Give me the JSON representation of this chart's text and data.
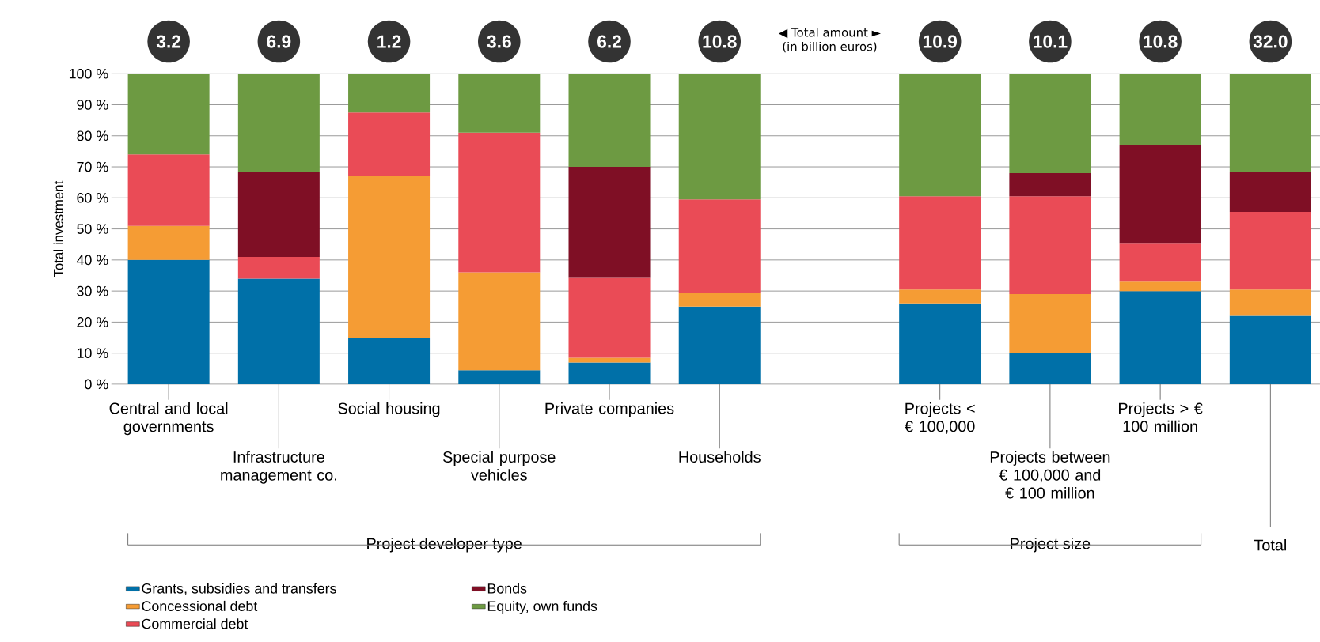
{
  "chart_data": {
    "type": "bar",
    "stacked": true,
    "ylabel": "Total investment",
    "categories": [
      "Central and local governments",
      "Infrastructure management co.",
      "Social housing",
      "Special purpose vehicles",
      "Private companies",
      "Households",
      null,
      "Projects < € 100,000",
      "Projects between € 100,000 and € 100 million",
      "Projects > € 100 million",
      null
    ],
    "series": [
      {
        "name": "Grants, subsidies and transfers",
        "color": "#0070a8",
        "values": [
          40,
          34,
          15,
          4.5,
          7,
          25,
          null,
          26,
          10,
          30,
          22
        ]
      },
      {
        "name": "Concessional debt",
        "color": "#f59c34",
        "values": [
          11,
          0,
          52,
          31.5,
          1.5,
          4.5,
          null,
          4.5,
          19,
          3,
          8.5
        ]
      },
      {
        "name": "Commercial debt",
        "color": "#ea4b56",
        "values": [
          23,
          7,
          20.5,
          45,
          26,
          30,
          null,
          30,
          31.5,
          12.5,
          25
        ]
      },
      {
        "name": "Bonds",
        "color": "#7f0f25",
        "values": [
          0,
          27.5,
          0,
          0,
          35.5,
          0,
          null,
          0,
          7.5,
          31.5,
          13
        ]
      },
      {
        "name": "Equity, own funds",
        "color": "#6d9a42",
        "values": [
          26,
          31.5,
          12.5,
          19,
          30,
          40.5,
          null,
          39.5,
          32,
          23,
          31.5
        ]
      }
    ],
    "ylim": [
      0,
      100
    ],
    "yticks": [
      {
        "value": 0,
        "label": "0 %"
      },
      {
        "value": 10,
        "label": "10 %"
      },
      {
        "value": 20,
        "label": "20 %"
      },
      {
        "value": 30,
        "label": "30 %"
      },
      {
        "value": 40,
        "label": "40 %"
      },
      {
        "value": 50,
        "label": "50 %"
      },
      {
        "value": 60,
        "label": "60 %"
      },
      {
        "value": 70,
        "label": "70 %"
      },
      {
        "value": 80,
        "label": "80 %"
      },
      {
        "value": 90,
        "label": "90 %"
      },
      {
        "value": 100,
        "label": "100 %"
      }
    ],
    "grid": "y",
    "legend": "bottom left",
    "annotations": [
      "◀ Total amount ►",
      "(in billion euros)",
      "Project developer type",
      "Project size",
      "Total",
      "3.2",
      "6.9",
      "1.2",
      "3.6",
      "6.2",
      "10.8",
      "10.9",
      "10.1",
      "10.8",
      "32.0"
    ]
  }
}
